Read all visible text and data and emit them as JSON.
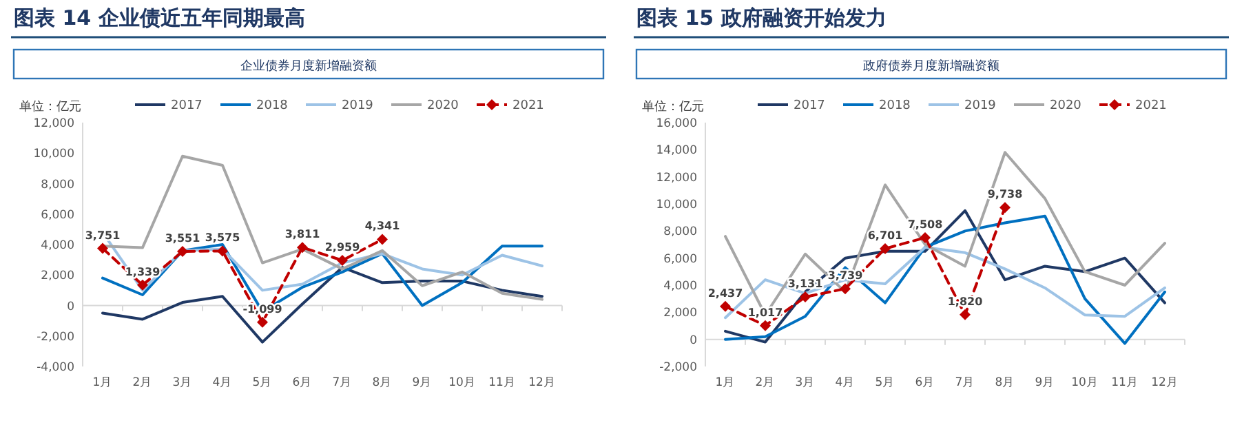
{
  "chart_data": [
    {
      "type": "line",
      "title": "图表 14 企业债近五年同期最高",
      "subtitle": "企业债券月度新增融资额",
      "ylabel": "单位：亿元",
      "legend": "top",
      "categories": [
        "1月",
        "2月",
        "3月",
        "4月",
        "5月",
        "6月",
        "7月",
        "8月",
        "9月",
        "10月",
        "11月",
        "12月"
      ],
      "ylim": [
        -4000,
        12000
      ],
      "yticks": [
        {
          "value": -4000,
          "label": "-4,000"
        },
        {
          "value": -2000,
          "label": "-2,000"
        },
        0,
        {
          "value": 2000,
          "label": "2,000"
        },
        {
          "value": 4000,
          "label": "4,000"
        },
        {
          "value": 6000,
          "label": "6,000"
        },
        {
          "value": 8000,
          "label": "8,000"
        },
        {
          "value": 10000,
          "label": "10,000"
        },
        {
          "value": 12000,
          "label": "12,000"
        }
      ],
      "series": [
        {
          "name": "2017",
          "color": "#1f3864",
          "values": [
            -500,
            -900,
            200,
            600,
            -2400,
            100,
            2500,
            1500,
            1600,
            1600,
            1000,
            600
          ]
        },
        {
          "name": "2018",
          "color": "#0070c0",
          "values": [
            1800,
            700,
            3600,
            4000,
            -400,
            1200,
            2200,
            3400,
            0,
            1500,
            3900,
            3900
          ]
        },
        {
          "name": "2019",
          "color": "#9dc3e6",
          "values": [
            4800,
            1000,
            3600,
            3700,
            1000,
            1400,
            2800,
            3400,
            2400,
            2000,
            3300,
            2600
          ]
        },
        {
          "name": "2020",
          "color": "#a6a6a6",
          "values": [
            3900,
            3800,
            9800,
            9200,
            2800,
            3700,
            2400,
            3600,
            1300,
            2200,
            800,
            400
          ]
        },
        {
          "name": "2021",
          "color": "#c00000",
          "marker": "diamond",
          "line_style": "dashed",
          "values": [
            3751,
            1339,
            3551,
            3575,
            -1099,
            3811,
            2959,
            4341,
            null,
            null,
            null,
            null
          ],
          "value_labels": [
            "3,751",
            "1,339",
            "3,551",
            "3,575",
            "-1,099",
            "3,811",
            "2,959",
            "4,341",
            null,
            null,
            null,
            null
          ]
        }
      ]
    },
    {
      "type": "line",
      "title": "图表 15 政府融资开始发力",
      "subtitle": "政府债券月度新增融资额",
      "ylabel": "单位：亿元",
      "legend": "top",
      "categories": [
        "1月",
        "2月",
        "3月",
        "4月",
        "5月",
        "6月",
        "7月",
        "8月",
        "9月",
        "10月",
        "11月",
        "12月"
      ],
      "ylim": [
        -2000,
        16000
      ],
      "yticks": [
        {
          "value": -2000,
          "label": "-2,000"
        },
        0,
        {
          "value": 2000,
          "label": "2,000"
        },
        {
          "value": 4000,
          "label": "4,000"
        },
        {
          "value": 6000,
          "label": "6,000"
        },
        {
          "value": 8000,
          "label": "8,000"
        },
        {
          "value": 10000,
          "label": "10,000"
        },
        {
          "value": 12000,
          "label": "12,000"
        },
        {
          "value": 14000,
          "label": "14,000"
        },
        {
          "value": 16000,
          "label": "16,000"
        }
      ],
      "series": [
        {
          "name": "2017",
          "color": "#1f3864",
          "values": [
            600,
            -200,
            3500,
            6000,
            6500,
            6500,
            9500,
            4400,
            5400,
            5000,
            6000,
            2700
          ]
        },
        {
          "name": "2018",
          "color": "#0070c0",
          "values": [
            0,
            200,
            1700,
            5300,
            2700,
            6800,
            8000,
            8600,
            9100,
            3000,
            -300,
            3500
          ]
        },
        {
          "name": "2019",
          "color": "#9dc3e6",
          "values": [
            1600,
            4400,
            3400,
            4400,
            4100,
            6800,
            6400,
            5200,
            3800,
            1800,
            1700,
            3800
          ]
        },
        {
          "name": "2020",
          "color": "#a6a6a6",
          "values": [
            7600,
            1800,
            6300,
            3500,
            11400,
            7000,
            5400,
            13800,
            10400,
            5000,
            4000,
            7100
          ]
        },
        {
          "name": "2021",
          "color": "#c00000",
          "marker": "diamond",
          "line_style": "dashed",
          "values": [
            2437,
            1017,
            3131,
            3739,
            6701,
            7508,
            1820,
            9738,
            null,
            null,
            null,
            null
          ],
          "value_labels": [
            "2,437",
            "1,017",
            "3,131",
            "3,739",
            "6,701",
            "7,508",
            "1,820",
            "9,738",
            null,
            null,
            null,
            null
          ]
        }
      ]
    }
  ]
}
